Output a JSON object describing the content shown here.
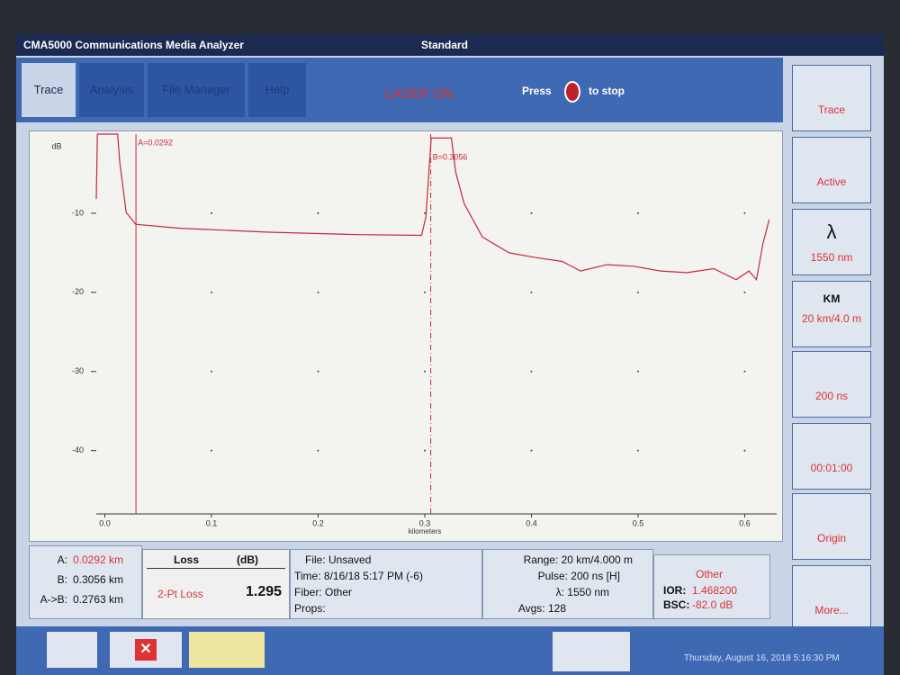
{
  "window": {
    "title": "CMA5000 Communications Media Analyzer",
    "mode": "Standard"
  },
  "tabs": [
    "Trace",
    "Analysis",
    "File Manager",
    "Help"
  ],
  "status": {
    "laser": "LASER ON",
    "press": "Press",
    "to_stop": "to stop"
  },
  "chart_data": {
    "type": "line",
    "ylabel": "dB",
    "xlabel": "kilometers",
    "color": "#c8283a",
    "x": [
      -0.008,
      -0.007,
      0.012,
      0.014,
      0.02,
      0.029,
      0.07,
      0.154,
      0.237,
      0.297,
      0.301,
      0.306,
      0.325,
      0.329,
      0.337,
      0.354,
      0.379,
      0.404,
      0.429,
      0.446,
      0.471,
      0.496,
      0.521,
      0.546,
      0.571,
      0.592,
      0.604,
      0.611,
      0.617,
      0.623
    ],
    "values": [
      -8.2,
      0,
      0,
      -3.6,
      -9.9,
      -11.4,
      -11.9,
      -12.4,
      -12.7,
      -12.8,
      -10.5,
      -0.5,
      -0.5,
      -4.8,
      -8.8,
      -13.0,
      -15.0,
      -15.6,
      -16.1,
      -17.3,
      -16.5,
      -16.7,
      -17.3,
      -17.5,
      -17.0,
      -18.4,
      -17.3,
      -18.4,
      -13.9,
      -10.8
    ],
    "xlim": [
      -0.008,
      0.63
    ],
    "ylim": [
      -48,
      0
    ],
    "xticks": [
      {
        "value": 0,
        "label": "0.0"
      },
      0.1,
      0.2,
      0.3,
      0.4,
      0.5,
      0.6
    ],
    "yticks": [
      -10,
      -20,
      -30,
      -40
    ],
    "grid": "dots",
    "cursors": [
      {
        "label": "A=0.0292",
        "x": 0.0292,
        "style": "solid"
      },
      {
        "label": "B=0.3056",
        "x": 0.3056,
        "style": "dashed"
      }
    ]
  },
  "markers": [
    {
      "label": "A:",
      "value": "0.0292 km"
    },
    {
      "label": "B:",
      "value": "0.3056 km"
    },
    {
      "label": "A->B:",
      "value": "0.2763 km"
    }
  ],
  "loss": {
    "header": "Loss",
    "unit": "(dB)",
    "method": "2-Pt Loss",
    "value": "1.295"
  },
  "file": [
    "File: Unsaved",
    "Time: 8/16/18 5:17 PM (-6)",
    "Fiber: Other",
    "Props:"
  ],
  "acquisition": [
    "Range: 20 km/4.000 m",
    "Pulse: 200 ns [H]",
    "λ: 1550 nm",
    "Avgs: 128"
  ],
  "fiber": {
    "title": "Other",
    "ior_label": "IOR:",
    "ior": "1.468200",
    "bsc_label": "BSC:",
    "bsc": "-82.0 dB"
  },
  "side_buttons": [
    {
      "label": "Trace"
    },
    {
      "label": "Active"
    },
    {
      "icon": "λ",
      "label": "1550 nm"
    },
    {
      "icon": "KM",
      "label": "20 km/4.0 m"
    },
    {
      "label": "200 ns"
    },
    {
      "label": "00:01:00"
    },
    {
      "label": "Origin"
    },
    {
      "label": "More..."
    }
  ],
  "footer": {
    "datetime": "Thursday, August 16, 2018 5:16:30 PM"
  }
}
